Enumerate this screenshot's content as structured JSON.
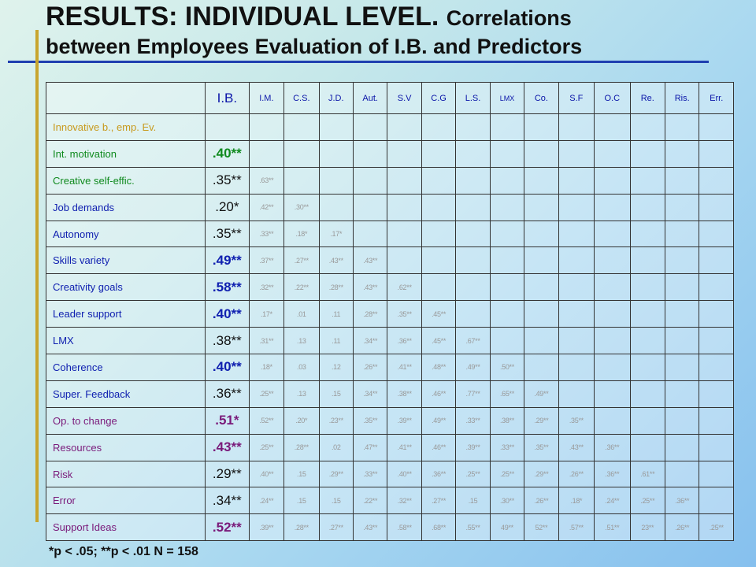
{
  "title": {
    "main": "RESULTS: INDIVIDUAL LEVEL.",
    "sub1": "Correlations",
    "line2": "between Employees Evaluation of I.B. and Predictors"
  },
  "headers": [
    "I.B.",
    "I.M.",
    "C.S.",
    "J.D.",
    "Aut.",
    "S.V",
    "C.G",
    "L.S.",
    "LMX",
    "Co.",
    "S.F",
    "O.C",
    "Re.",
    "Ris.",
    "Err."
  ],
  "rows": [
    {
      "label": "Innovative  b., emp. Ev.",
      "color": "#c89a1e",
      "ib": "",
      "ib_bold": false,
      "ib_color": "#111111",
      "cells": []
    },
    {
      "label": "Int. motivation",
      "color": "#0f8a1e",
      "ib": ".40**",
      "ib_bold": true,
      "ib_color": "#0f8a1e",
      "cells": []
    },
    {
      "label": "Creative self-effic.",
      "color": "#0f8a1e",
      "ib": ".35**",
      "ib_bold": false,
      "ib_color": "#111111",
      "cells": [
        ".63**"
      ]
    },
    {
      "label": "Job demands",
      "color": "#1020b0",
      "ib": ".20*",
      "ib_bold": false,
      "ib_color": "#111111",
      "cells": [
        ".42**",
        ".30**"
      ]
    },
    {
      "label": "Autonomy",
      "color": "#1020b0",
      "ib": ".35**",
      "ib_bold": false,
      "ib_color": "#111111",
      "cells": [
        ".33**",
        ".18*",
        ".17*"
      ]
    },
    {
      "label": "Skills variety",
      "color": "#1020b0",
      "ib": ".49**",
      "ib_bold": true,
      "ib_color": "#1020b0",
      "cells": [
        ".37**",
        ".27**",
        ".43**",
        ".43**"
      ]
    },
    {
      "label": "Creativity goals",
      "color": "#1020b0",
      "ib": ".58**",
      "ib_bold": true,
      "ib_color": "#1020b0",
      "cells": [
        ".32**",
        ".22**",
        ".28**",
        ".43**",
        ".62**"
      ]
    },
    {
      "label": "Leader  support",
      "color": "#1020b0",
      "ib": ".40**",
      "ib_bold": true,
      "ib_color": "#1020b0",
      "cells": [
        ".17*",
        ".01",
        ".11",
        ".28**",
        ".35**",
        ".45**"
      ]
    },
    {
      "label": "LMX",
      "color": "#1020b0",
      "ib": ".38**",
      "ib_bold": false,
      "ib_color": "#111111",
      "cells": [
        ".31**",
        ".13",
        ".11",
        ".34**",
        ".36**",
        ".45**",
        ".67**"
      ]
    },
    {
      "label": "Coherence",
      "color": "#1020b0",
      "ib": ".40**",
      "ib_bold": true,
      "ib_color": "#1020b0",
      "cells": [
        ".18*",
        ".03",
        ".12",
        ".26**",
        ".41**",
        ".48**",
        ".49**",
        ".50**"
      ]
    },
    {
      "label": "Super. Feedback",
      "color": "#1020b0",
      "ib": ".36**",
      "ib_bold": false,
      "ib_color": "#111111",
      "cells": [
        ".25**",
        ".13",
        ".15",
        ".34**",
        ".38**",
        ".46**",
        ".77**",
        ".65**",
        ".49**"
      ]
    },
    {
      "label": "Op. to change",
      "color": "#7a1a7a",
      "ib": ".51*",
      "ib_bold": true,
      "ib_color": "#7a1a7a",
      "cells": [
        ".52**",
        ".20*",
        ".23**",
        ".35**",
        ".39**",
        ".49**",
        ".33**",
        ".38**",
        ".29**",
        ".35**"
      ]
    },
    {
      "label": "Resources",
      "color": "#7a1a7a",
      "ib": ".43**",
      "ib_bold": true,
      "ib_color": "#7a1a7a",
      "cells": [
        ".25**",
        ".28**",
        ".02",
        ".47**",
        ".41**",
        ".46**",
        ".39**",
        ".33**",
        ".35**",
        ".43**",
        ".36**"
      ]
    },
    {
      "label": "Risk",
      "color": "#7a1a7a",
      "ib": ".29**",
      "ib_bold": false,
      "ib_color": "#111111",
      "cells": [
        ".40**",
        ".15",
        ".29**",
        ".33**",
        ".40**",
        ".36**",
        ".25**",
        ".25**",
        ".29**",
        ".26**",
        ".36**",
        ".61**"
      ]
    },
    {
      "label": "Error",
      "color": "#7a1a7a",
      "ib": ".34**",
      "ib_bold": false,
      "ib_color": "#111111",
      "cells": [
        ".24**",
        ".15",
        ".15",
        ".22**",
        ".32**",
        ".27**",
        ".15",
        ".30**",
        ".26**",
        ".18*",
        ".24**",
        ".25**",
        ".36**"
      ]
    },
    {
      "label": "Support  Ideas",
      "color": "#7a1a7a",
      "ib": ".52**",
      "ib_bold": true,
      "ib_color": "#7a1a7a",
      "cells": [
        ".39**",
        ".28**",
        ".27**",
        ".43**",
        ".58**",
        ".68**",
        ".55**",
        "49**",
        "52**",
        ".57**",
        ".51**",
        "23**",
        ".26**",
        ".25**"
      ]
    }
  ],
  "footnote": "*p < .05; **p < .01 N = 158"
}
